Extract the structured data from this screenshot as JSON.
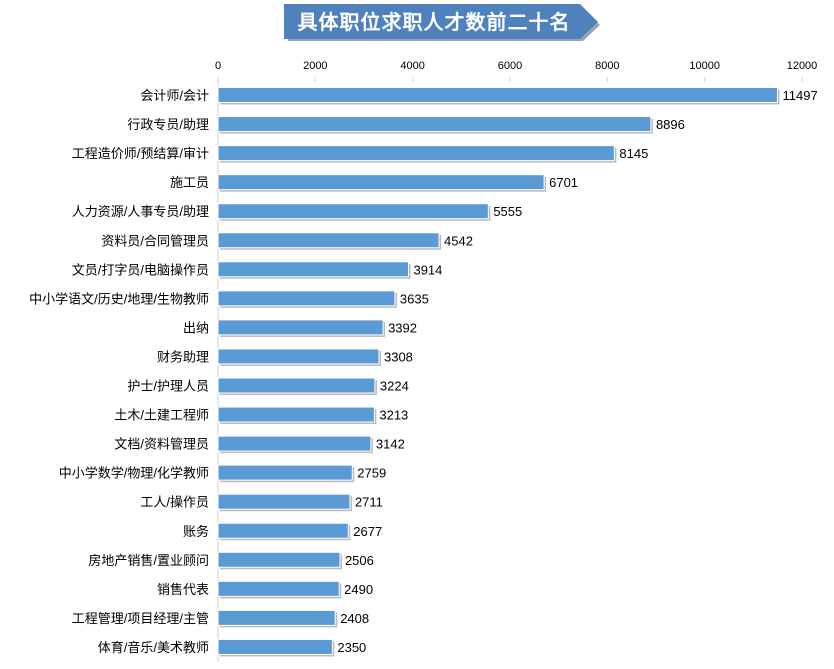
{
  "chart_data": {
    "type": "bar",
    "orientation": "horizontal",
    "title": "具体职位求职人才数前二十名",
    "xlabel": "",
    "ylabel": "",
    "xlim": [
      0,
      12000
    ],
    "xticks": [
      0,
      2000,
      4000,
      6000,
      8000,
      10000,
      12000
    ],
    "axis_position": "top",
    "grid": false,
    "bar_color": "#5b9bd5",
    "title_color": "#4f81bd",
    "categories": [
      "会计师/会计",
      "行政专员/助理",
      "工程造价师/预结算/审计",
      "施工员",
      "人力资源/人事专员/助理",
      "资料员/合同管理员",
      "文员/打字员/电脑操作员",
      "中小学语文/历史/地理/生物教师",
      "出纳",
      "财务助理",
      "护士/护理人员",
      "土木/土建工程师",
      "文档/资料管理员",
      "中小学数学/物理/化学教师",
      "工人/操作员",
      "账务",
      "房地产销售/置业顾问",
      "销售代表",
      "工程管理/项目经理/主管",
      "体育/音乐/美术教师"
    ],
    "values": [
      11497,
      8896,
      8145,
      6701,
      5555,
      4542,
      3914,
      3635,
      3392,
      3308,
      3224,
      3213,
      3142,
      2759,
      2711,
      2677,
      2506,
      2490,
      2408,
      2350
    ]
  }
}
